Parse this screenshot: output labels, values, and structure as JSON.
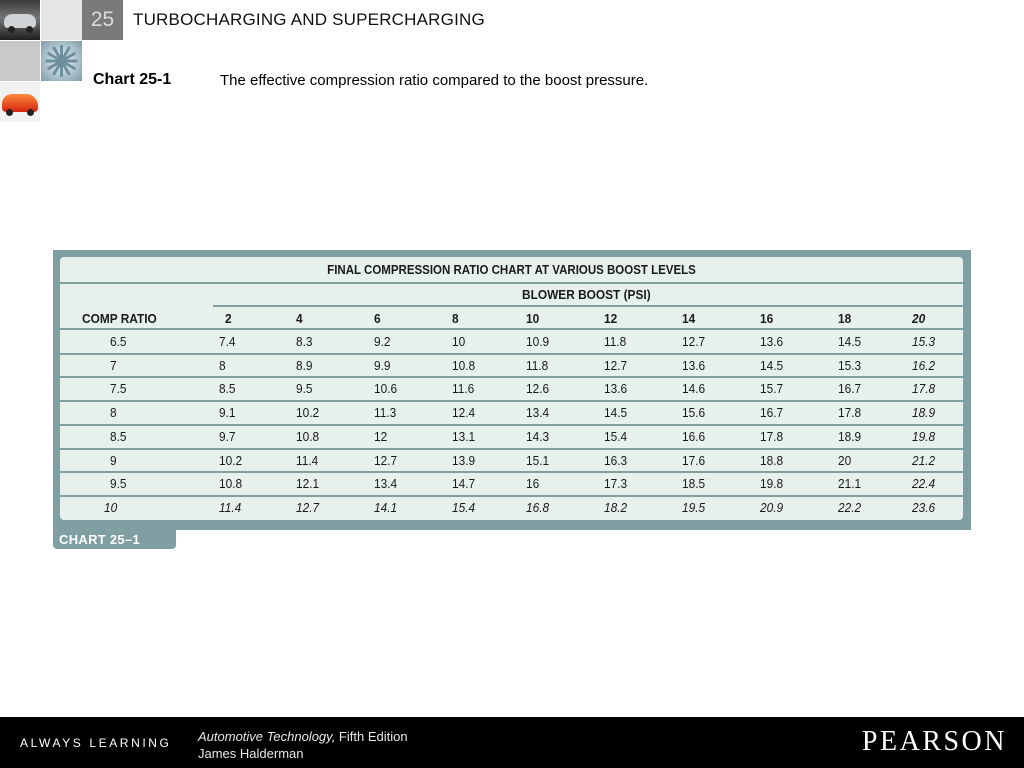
{
  "header": {
    "chapter_number": "25",
    "deck_title": "TURBOCHARGING AND SUPERCHARGING"
  },
  "slide": {
    "chart_label": "Chart 25-1",
    "caption": "The effective compression ratio compared to the boost pressure."
  },
  "table": {
    "title": "FINAL COMPRESSION RATIO CHART AT VARIOUS BOOST LEVELS",
    "group_header": "BLOWER BOOST (PSI)",
    "row_header": "COMP RATIO",
    "boost_levels": [
      "2",
      "4",
      "6",
      "8",
      "10",
      "12",
      "14",
      "16",
      "18",
      "20"
    ],
    "rows": [
      {
        "ratio": "6.5",
        "values": [
          "7.4",
          "8.3",
          "9.2",
          "10",
          "10.9",
          "11.8",
          "12.7",
          "13.6",
          "14.5",
          "15.3"
        ]
      },
      {
        "ratio": "7",
        "values": [
          "8",
          "8.9",
          "9.9",
          "10.8",
          "11.8",
          "12.7",
          "13.6",
          "14.5",
          "15.3",
          "16.2"
        ]
      },
      {
        "ratio": "7.5",
        "values": [
          "8.5",
          "9.5",
          "10.6",
          "11.6",
          "12.6",
          "13.6",
          "14.6",
          "15.7",
          "16.7",
          "17.8"
        ]
      },
      {
        "ratio": "8",
        "values": [
          "9.1",
          "10.2",
          "11.3",
          "12.4",
          "13.4",
          "14.5",
          "15.6",
          "16.7",
          "17.8",
          "18.9"
        ]
      },
      {
        "ratio": "8.5",
        "values": [
          "9.7",
          "10.8",
          "12",
          "13.1",
          "14.3",
          "15.4",
          "16.6",
          "17.8",
          "18.9",
          "19.8"
        ]
      },
      {
        "ratio": "9",
        "values": [
          "10.2",
          "11.4",
          "12.7",
          "13.9",
          "15.1",
          "16.3",
          "17.6",
          "18.8",
          "20",
          "21.2"
        ]
      },
      {
        "ratio": "9.5",
        "values": [
          "10.8",
          "12.1",
          "13.4",
          "14.7",
          "16",
          "17.3",
          "18.5",
          "19.8",
          "21.1",
          "22.4"
        ]
      },
      {
        "ratio": "10",
        "values": [
          "11.4",
          "12.7",
          "14.1",
          "15.4",
          "16.8",
          "18.2",
          "19.5",
          "20.9",
          "22.2",
          "23.6"
        ]
      }
    ],
    "tag": "CHART 25–1",
    "colors": {
      "frame": "#7f9fa2",
      "panel": "#e6f1ec"
    }
  },
  "footer": {
    "slogan": "ALWAYS LEARNING",
    "book_title": "Automotive Technology,",
    "edition": " Fifth Edition",
    "author": "James Halderman",
    "publisher": "PEARSON"
  }
}
